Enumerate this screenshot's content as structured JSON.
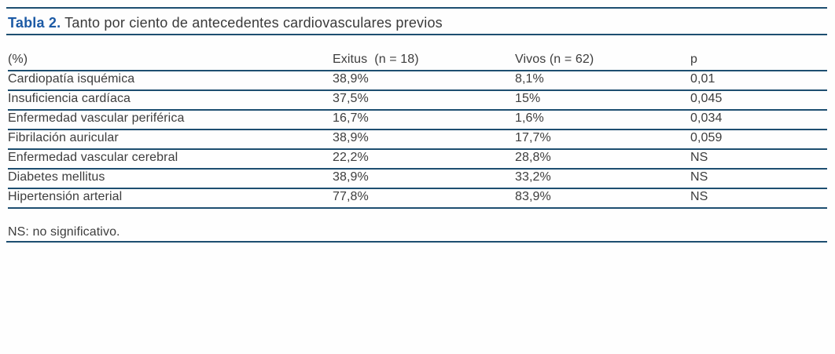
{
  "page": {
    "title_label": "Tabla 2.",
    "title_text": " Tanto por ciento de antecedentes cardiovasculares previos"
  },
  "table": {
    "headers": [
      "(%)",
      "Exitus  (n = 18)",
      "Vivos (n = 62)",
      "p"
    ],
    "rows": [
      {
        "label": "Cardiopatía isquémica",
        "exitus": "38,9%",
        "vivos": "8,1%",
        "p": "0,01"
      },
      {
        "label": "Insuficiencia cardíaca",
        "exitus": "37,5%",
        "vivos": "15%",
        "p": "0,045"
      },
      {
        "label": "Enfermedad vascular periférica",
        "exitus": "16,7%",
        "vivos": "1,6%",
        "p": "0,034"
      },
      {
        "label": "Fibrilación auricular",
        "exitus": "38,9%",
        "vivos": "17,7%",
        "p": "0,059"
      },
      {
        "label": "Enfermedad vascular cerebral",
        "exitus": "22,2%",
        "vivos": "28,8%",
        "p": "NS"
      },
      {
        "label": "Diabetes mellitus",
        "exitus": "38,9%",
        "vivos": "33,2%",
        "p": "NS"
      },
      {
        "label": "Hipertensión arterial",
        "exitus": "77,8%",
        "vivos": "83,9%",
        "p": "NS"
      }
    ]
  },
  "footnote": "NS: no significativo.",
  "colors": {
    "rule": "#1d4e70",
    "title_accent": "#1c5aa5",
    "text": "#3d3d3d"
  }
}
